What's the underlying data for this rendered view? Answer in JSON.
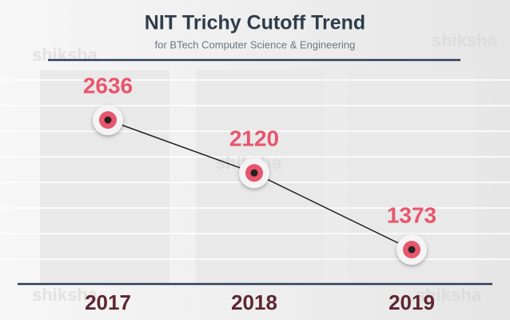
{
  "chart_data": {
    "type": "line",
    "title": "NIT Trichy Cutoff Trend",
    "subtitle": "for BTech Computer Science & Engineering",
    "categories": [
      "2017",
      "2018",
      "2019"
    ],
    "values": [
      2636,
      2120,
      1373
    ],
    "color": "#e8566e",
    "y_inverted": true,
    "watermark": "shiksha"
  }
}
